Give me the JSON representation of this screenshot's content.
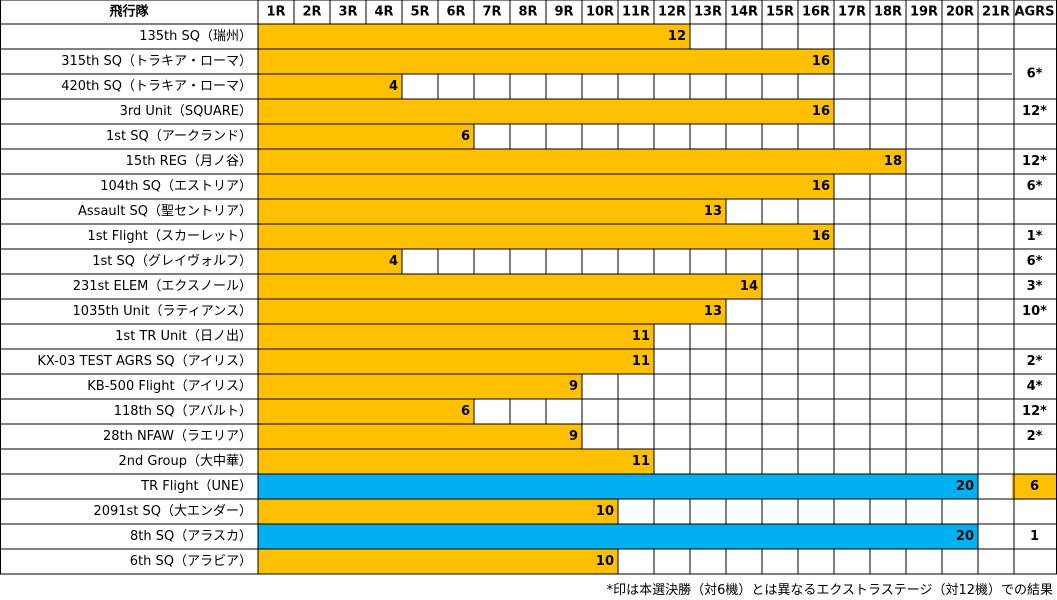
{
  "chart_data": {
    "type": "table",
    "header": {
      "squadron": "飛行隊",
      "rounds": [
        "1R",
        "2R",
        "3R",
        "4R",
        "5R",
        "6R",
        "7R",
        "8R",
        "9R",
        "10R",
        "11R",
        "12R",
        "13R",
        "14R",
        "15R",
        "16R",
        "17R",
        "18R",
        "19R",
        "20R",
        "21R"
      ],
      "agrs": "AGRS"
    },
    "rows": [
      {
        "name": "135th SQ（瑞州）",
        "value": 12,
        "color": "orange",
        "agrs": ""
      },
      {
        "name": "315th SQ（トラキア・ローマ）",
        "value": 16,
        "color": "orange",
        "agrs": "6*",
        "agrs_span": 2
      },
      {
        "name": "420th SQ（トラキア・ローマ）",
        "value": 4,
        "color": "orange",
        "agrs": null
      },
      {
        "name": "3rd Unit（SQUARE）",
        "value": 16,
        "color": "orange",
        "agrs": "12*"
      },
      {
        "name": "1st SQ（アークランド）",
        "value": 6,
        "color": "orange",
        "agrs": ""
      },
      {
        "name": "15th REG（月ノ谷）",
        "value": 18,
        "color": "orange",
        "agrs": "12*"
      },
      {
        "name": "104th SQ（エストリア）",
        "value": 16,
        "color": "orange",
        "agrs": "6*"
      },
      {
        "name": "Assault SQ（聖セントリア）",
        "value": 13,
        "color": "orange",
        "agrs": ""
      },
      {
        "name": "1st Flight（スカーレット）",
        "value": 16,
        "color": "orange",
        "agrs": "1*"
      },
      {
        "name": "1st SQ（グレイヴォルフ）",
        "value": 4,
        "color": "orange",
        "agrs": "6*"
      },
      {
        "name": "231st ELEM（エクスノール）",
        "value": 14,
        "color": "orange",
        "agrs": "3*"
      },
      {
        "name": "1035th Unit（ラティアンス）",
        "value": 13,
        "color": "orange",
        "agrs": "10*"
      },
      {
        "name": "1st TR Unit（日ノ出）",
        "value": 11,
        "color": "orange",
        "agrs": ""
      },
      {
        "name": "KX-03 TEST AGRS SQ（アイリス）",
        "value": 11,
        "color": "orange",
        "agrs": "2*"
      },
      {
        "name": "KB-500 Flight（アイリス）",
        "value": 9,
        "color": "orange",
        "agrs": "4*"
      },
      {
        "name": "118th SQ（アバルト）",
        "value": 6,
        "color": "orange",
        "agrs": "12*"
      },
      {
        "name": "28th NFAW（ラエリア）",
        "value": 9,
        "color": "orange",
        "agrs": "2*"
      },
      {
        "name": "2nd Group（大中華）",
        "value": 11,
        "color": "orange",
        "agrs": ""
      },
      {
        "name": "TR Flight（UNE）",
        "value": 20,
        "color": "blue",
        "agrs": "6",
        "agrs_highlight": true
      },
      {
        "name": "2091st SQ（大エンダー）",
        "value": 10,
        "color": "orange",
        "agrs": ""
      },
      {
        "name": "8th SQ（アラスカ）",
        "value": 20,
        "color": "blue",
        "agrs": "1"
      },
      {
        "name": "6th SQ（アラビア）",
        "value": 10,
        "color": "orange",
        "agrs": ""
      }
    ],
    "colors": {
      "orange": "#FFC000",
      "blue": "#00B0F0",
      "grid": "#000000",
      "header_bg": "#ffffff"
    }
  },
  "footnote": "*印は本選決勝（対6機）とは異なるエクストラステージ（対12機）での結果"
}
